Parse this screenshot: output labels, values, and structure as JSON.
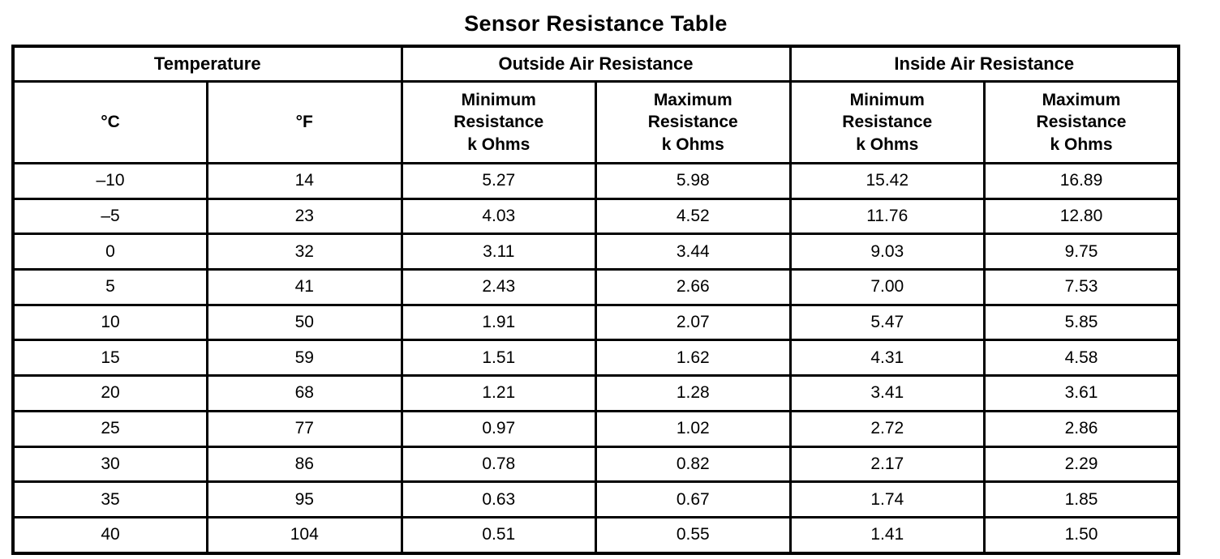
{
  "title": "Sensor Resistance Table",
  "table": {
    "group_headers": [
      {
        "label": "Temperature"
      },
      {
        "label": "Outside Air Resistance"
      },
      {
        "label": "Inside Air Resistance"
      }
    ],
    "column_headers": [
      "°C",
      "°F",
      "Minimum\nResistance\nk Ohms",
      "Maximum\nResistance\nk Ohms",
      "Minimum\nResistance\nk Ohms",
      "Maximum\nResistance\nk Ohms"
    ],
    "rows": [
      {
        "cells": [
          "–10",
          "14",
          "5.27",
          "5.98",
          "15.42",
          "16.89"
        ]
      },
      {
        "cells": [
          "–5",
          "23",
          "4.03",
          "4.52",
          "11.76",
          "12.80"
        ]
      },
      {
        "cells": [
          "0",
          "32",
          "3.11",
          "3.44",
          "9.03",
          "9.75"
        ]
      },
      {
        "cells": [
          "5",
          "41",
          "2.43",
          "2.66",
          "7.00",
          "7.53"
        ]
      },
      {
        "cells": [
          "10",
          "50",
          "1.91",
          "2.07",
          "5.47",
          "5.85"
        ]
      },
      {
        "cells": [
          "15",
          "59",
          "1.51",
          "1.62",
          "4.31",
          "4.58"
        ]
      },
      {
        "cells": [
          "20",
          "68",
          "1.21",
          "1.28",
          "3.41",
          "3.61"
        ]
      },
      {
        "cells": [
          "25",
          "77",
          "0.97",
          "1.02",
          "2.72",
          "2.86"
        ]
      },
      {
        "cells": [
          "30",
          "86",
          "0.78",
          "0.82",
          "2.17",
          "2.29"
        ]
      },
      {
        "cells": [
          "35",
          "95",
          "0.63",
          "0.67",
          "1.74",
          "1.85"
        ]
      },
      {
        "cells": [
          "40",
          "104",
          "0.51",
          "0.55",
          "1.41",
          "1.50"
        ]
      }
    ],
    "colors": {
      "border": "#000000",
      "text": "#000000",
      "background": "#ffffff"
    }
  }
}
